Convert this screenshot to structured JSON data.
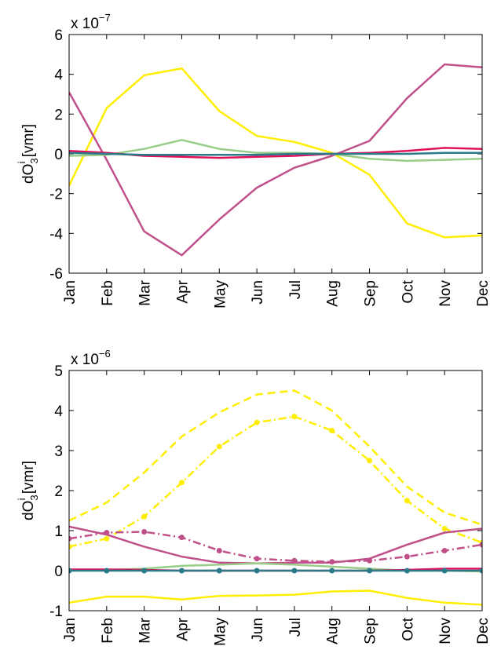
{
  "chart_data": [
    {
      "type": "line",
      "y_scale_base": "x 10",
      "y_scale_exponent": "−7",
      "ylabel": {
        "base": "dO",
        "sub": "3",
        "sup": "i",
        "unit": "[vmr]"
      },
      "categories": [
        "Jan",
        "Feb",
        "Mar",
        "Apr",
        "May",
        "Jun",
        "Jul",
        "Aug",
        "Sep",
        "Oct",
        "Nov",
        "Dec"
      ],
      "ylim": [
        -6,
        6
      ],
      "yticks": [
        -6,
        -4,
        -2,
        0,
        2,
        4,
        6
      ],
      "series": [
        {
          "color": "#ffee00",
          "dash": "solid",
          "markers": false,
          "values": [
            -1.6,
            2.3,
            3.95,
            4.3,
            2.15,
            0.9,
            0.6,
            0.05,
            -1.05,
            -3.5,
            -4.2,
            -4.1
          ]
        },
        {
          "color": "#c0508a",
          "dash": "solid",
          "markers": false,
          "values": [
            3.1,
            -0.3,
            -3.9,
            -5.1,
            -3.3,
            -1.7,
            -0.7,
            -0.1,
            0.65,
            2.8,
            4.5,
            4.35
          ]
        },
        {
          "color": "#99cc88",
          "dash": "solid",
          "markers": false,
          "values": [
            -0.1,
            -0.05,
            0.25,
            0.7,
            0.25,
            0.05,
            0.05,
            0,
            -0.25,
            -0.35,
            -0.3,
            -0.25
          ]
        },
        {
          "color": "#e0105a",
          "dash": "solid",
          "markers": false,
          "values": [
            0.15,
            0.05,
            -0.1,
            -0.15,
            -0.2,
            -0.15,
            -0.1,
            0,
            0.05,
            0.15,
            0.3,
            0.25
          ]
        },
        {
          "color": "#2a7a8a",
          "dash": "solid",
          "markers": false,
          "values": [
            0.05,
            0,
            -0.05,
            -0.05,
            -0.05,
            -0.05,
            0,
            0,
            0,
            0,
            0.05,
            0.05
          ]
        }
      ]
    },
    {
      "type": "line",
      "y_scale_base": "x 10",
      "y_scale_exponent": "−6",
      "ylabel": {
        "base": "dO",
        "sub": "3",
        "sup": "i",
        "unit": "[vmr]"
      },
      "categories": [
        "Jan",
        "Feb",
        "Mar",
        "Apr",
        "May",
        "Jun",
        "Jul",
        "Aug",
        "Sep",
        "Oct",
        "Nov",
        "Dec"
      ],
      "ylim": [
        -1,
        5
      ],
      "yticks": [
        -1,
        0,
        1,
        2,
        3,
        4,
        5
      ],
      "series": [
        {
          "color": "#ffee00",
          "dash": "dashed",
          "markers": false,
          "values": [
            1.25,
            1.7,
            2.45,
            3.35,
            3.95,
            4.4,
            4.5,
            4.0,
            3.1,
            2.1,
            1.45,
            1.15
          ]
        },
        {
          "color": "#ffee00",
          "dash": "dashdot",
          "markers": true,
          "values": [
            0.6,
            0.8,
            1.35,
            2.2,
            3.1,
            3.7,
            3.85,
            3.5,
            2.75,
            1.75,
            1.05,
            0.7
          ]
        },
        {
          "color": "#ffee00",
          "dash": "solid",
          "markers": false,
          "values": [
            -0.8,
            -0.65,
            -0.65,
            -0.72,
            -0.63,
            -0.62,
            -0.6,
            -0.52,
            -0.5,
            -0.68,
            -0.8,
            -0.85
          ]
        },
        {
          "color": "#c0508a",
          "dash": "solid",
          "markers": false,
          "values": [
            1.1,
            0.9,
            0.6,
            0.35,
            0.2,
            0.18,
            0.2,
            0.2,
            0.3,
            0.65,
            0.95,
            1.05
          ]
        },
        {
          "color": "#c0508a",
          "dash": "dashdot",
          "markers": true,
          "values": [
            0.8,
            0.95,
            0.97,
            0.83,
            0.5,
            0.3,
            0.25,
            0.22,
            0.25,
            0.35,
            0.5,
            0.65
          ]
        },
        {
          "color": "#99cc88",
          "dash": "solid",
          "markers": false,
          "values": [
            0,
            0.02,
            0.05,
            0.12,
            0.15,
            0.18,
            0.15,
            0.1,
            0.05,
            0,
            0,
            -0.02
          ]
        },
        {
          "color": "#e0105a",
          "dash": "solid",
          "markers": false,
          "values": [
            0.03,
            0.03,
            0.02,
            0,
            0,
            0,
            0,
            0,
            0,
            0.02,
            0.05,
            0.05
          ]
        },
        {
          "color": "#2a7a8a",
          "dash": "solid",
          "markers": true,
          "values": [
            0,
            0,
            0,
            0,
            0,
            0,
            0,
            0,
            0,
            0,
            0,
            0
          ]
        }
      ]
    }
  ]
}
